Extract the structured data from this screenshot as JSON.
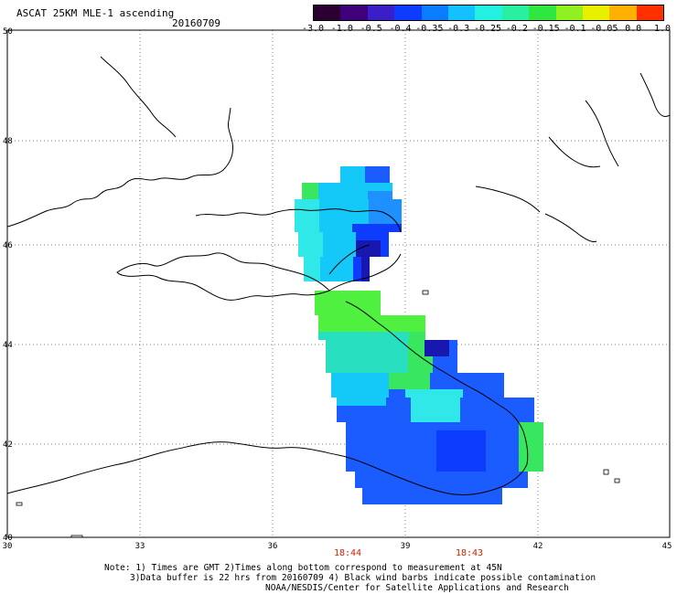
{
  "title": "ASCAT 25KM MLE-1 ascending",
  "date": "20160709",
  "colorbar": {
    "labels": [
      "-3.0",
      "-1.0",
      "-0.5",
      "-0.4",
      "-0.35",
      "-0.3",
      "-0.25",
      "-0.2",
      "-0.15",
      "-0.1",
      "-0.05",
      "0.0",
      "1.0"
    ],
    "colors": [
      "#2a0030",
      "#40007a",
      "#3a1ec8",
      "#0e3cff",
      "#0a7cff",
      "#14c0ff",
      "#22f0e0",
      "#28f0a0",
      "#30e640",
      "#90f020",
      "#e8f000",
      "#ffb000",
      "#ff3000"
    ]
  },
  "axes": {
    "x_ticks": [
      "30",
      "33",
      "36",
      "39",
      "42",
      "45"
    ],
    "y_ticks": [
      "50",
      "48",
      "46",
      "44",
      "42",
      "40"
    ]
  },
  "times": [
    "18:44",
    "18:43"
  ],
  "notes": [
    "Note: 1) Times are GMT 2)Times along bottom correspond to measurement at 45N",
    "3)Data buffer is 22 hrs from 20160709 4) Black wind barbs indicate possible contamination",
    "NOAA/NESDIS/Center for Satellite Applications and Research"
  ]
}
